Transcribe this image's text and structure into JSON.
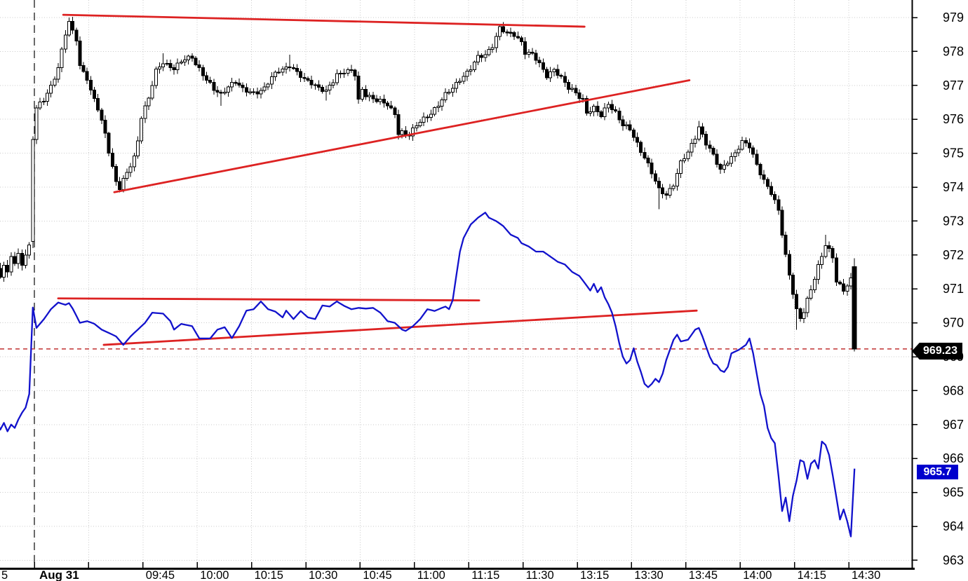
{
  "window": {
    "background": "#ffffff"
  },
  "axes": {
    "price_axis": {
      "side": "right",
      "labels": [
        "979",
        "978",
        "977",
        "976",
        "975",
        "974",
        "973",
        "972",
        "971",
        "970",
        "969",
        "968",
        "967",
        "966",
        "965",
        "964",
        "963"
      ],
      "min": 963,
      "max": 979,
      "step": 1
    },
    "time_axis": {
      "partial_left_label": "5",
      "session_date_label": "Aug 31",
      "labels": [
        {
          "text": "09:45",
          "minute": 30
        },
        {
          "text": "10:00",
          "minute": 45
        },
        {
          "text": "10:15",
          "minute": 60
        },
        {
          "text": "10:30",
          "minute": 75
        },
        {
          "text": "10:45",
          "minute": 90
        },
        {
          "text": "11:00",
          "minute": 105
        },
        {
          "text": "11:15",
          "minute": 120
        },
        {
          "text": "11:30",
          "minute": 135
        },
        {
          "text": "13:15",
          "minute": 150
        },
        {
          "text": "13:30",
          "minute": 165
        },
        {
          "text": "13:45",
          "minute": 180
        },
        {
          "text": "14:00",
          "minute": 195
        },
        {
          "text": "14:15",
          "minute": 210
        },
        {
          "text": "14:30",
          "minute": 225
        }
      ],
      "tick_minutes": [
        0,
        15,
        30,
        45,
        60,
        75,
        90,
        105,
        120,
        135,
        150,
        165,
        180,
        195,
        210,
        225
      ],
      "note": "lunch break 11:30-13:00 omitted between adjacent labels 11:30 and 13:15"
    }
  },
  "tags": {
    "candle_close": {
      "value": "969.23",
      "price": 969.23,
      "bg": "#000000",
      "fg": "#ffffff"
    },
    "line_close": {
      "value": "965.7",
      "price": 965.7,
      "bg": "#0000cd",
      "fg": "#ffffff"
    }
  },
  "chart_data": {
    "type": "candlestick+line",
    "interval_minutes": 1,
    "ylim": [
      963,
      979
    ],
    "grid": "dotted both axes, every price unit and every 15 minutes",
    "session": {
      "date_label": "Aug 31",
      "open": "09:15",
      "close_shown": "14:30",
      "break": [
        "11:30",
        "13:00"
      ]
    },
    "colors": {
      "up_body": "#ffffff",
      "down_body": "#000000",
      "outline": "#000000",
      "line_series": "#1212cc",
      "trendline": "#dd2222",
      "dashed_level": "#c03030",
      "grid": "#c9c9c9",
      "axis": "#000000",
      "session_separator": "#1a1a1a"
    },
    "candles": {
      "prev_day_closes": [
        971.6,
        971.35,
        971.7,
        971.5,
        971.95,
        971.75,
        972.05,
        971.7,
        972.0,
        972.3
      ],
      "gap_candle": {
        "open": 972.4,
        "close": 975.4,
        "high": 975.5,
        "low": 972.2
      },
      "close_anchors": [
        [
          0,
          976.3
        ],
        [
          2,
          976.6
        ],
        [
          4,
          977.0
        ],
        [
          6,
          977.5
        ],
        [
          8,
          978.5
        ],
        [
          9,
          978.85
        ],
        [
          10,
          978.6
        ],
        [
          11,
          978.4
        ],
        [
          12,
          977.6
        ],
        [
          14,
          977.2
        ],
        [
          15,
          976.8
        ],
        [
          17,
          976.3
        ],
        [
          19,
          975.6
        ],
        [
          21,
          974.6
        ],
        [
          22,
          974.15
        ],
        [
          23,
          973.95
        ],
        [
          25,
          974.4
        ],
        [
          27,
          974.9
        ],
        [
          28,
          975.4
        ],
        [
          29,
          976.1
        ],
        [
          31,
          976.6
        ],
        [
          33,
          977.4
        ],
        [
          35,
          977.7
        ],
        [
          38,
          977.5
        ],
        [
          41,
          977.75
        ],
        [
          43,
          977.85
        ],
        [
          45,
          977.5
        ],
        [
          47,
          977.15
        ],
        [
          49,
          976.85
        ],
        [
          51,
          976.75
        ],
        [
          53,
          977.0
        ],
        [
          55,
          977.1
        ],
        [
          57,
          976.85
        ],
        [
          60,
          976.8
        ],
        [
          63,
          976.9
        ],
        [
          65,
          977.2
        ],
        [
          67,
          977.45
        ],
        [
          70,
          977.6
        ],
        [
          72,
          977.35
        ],
        [
          74,
          977.15
        ],
        [
          76,
          977.1
        ],
        [
          78,
          976.95
        ],
        [
          80,
          976.8
        ],
        [
          82,
          977.1
        ],
        [
          83,
          977.3
        ],
        [
          85,
          977.45
        ],
        [
          87,
          977.45
        ],
        [
          88,
          977.3
        ],
        [
          89,
          976.5
        ],
        [
          90,
          976.85
        ],
        [
          91,
          976.7
        ],
        [
          93,
          976.65
        ],
        [
          95,
          976.55
        ],
        [
          97,
          976.4
        ],
        [
          98,
          976.25
        ],
        [
          99,
          976.15
        ],
        [
          100,
          975.6
        ],
        [
          101,
          975.65
        ],
        [
          102,
          975.6
        ],
        [
          103,
          975.55
        ],
        [
          105,
          975.8
        ],
        [
          107,
          976.0
        ],
        [
          109,
          976.2
        ],
        [
          111,
          976.45
        ],
        [
          113,
          976.7
        ],
        [
          115,
          976.9
        ],
        [
          117,
          977.2
        ],
        [
          119,
          977.4
        ],
        [
          120,
          977.5
        ],
        [
          122,
          977.8
        ],
        [
          124,
          977.9
        ],
        [
          126,
          978.2
        ],
        [
          128,
          978.7
        ],
        [
          130,
          978.5
        ],
        [
          132,
          978.5
        ],
        [
          134,
          978.3
        ],
        [
          135,
          978.0
        ],
        [
          137,
          977.9
        ],
        [
          139,
          977.6
        ],
        [
          141,
          977.3
        ],
        [
          143,
          977.5
        ],
        [
          145,
          977.2
        ],
        [
          147,
          976.9
        ],
        [
          149,
          976.8
        ],
        [
          151,
          976.6
        ],
        [
          152,
          976.2
        ],
        [
          154,
          976.3
        ],
        [
          156,
          976.1
        ],
        [
          158,
          976.5
        ],
        [
          160,
          976.2
        ],
        [
          162,
          975.8
        ],
        [
          164,
          975.7
        ],
        [
          166,
          975.3
        ],
        [
          168,
          974.9
        ],
        [
          170,
          974.4
        ],
        [
          172,
          973.9
        ],
        [
          174,
          973.8
        ],
        [
          176,
          974.1
        ],
        [
          178,
          974.7
        ],
        [
          180,
          975.0
        ],
        [
          182,
          975.5
        ],
        [
          183,
          975.8
        ],
        [
          185,
          975.3
        ],
        [
          187,
          974.9
        ],
        [
          189,
          974.5
        ],
        [
          191,
          974.8
        ],
        [
          193,
          975.0
        ],
        [
          195,
          975.3
        ],
        [
          197,
          975.2
        ],
        [
          199,
          974.7
        ],
        [
          201,
          974.2
        ],
        [
          203,
          973.8
        ],
        [
          205,
          973.3
        ],
        [
          207,
          972.0
        ],
        [
          209,
          970.9
        ],
        [
          210,
          970.35
        ],
        [
          211,
          970.1
        ],
        [
          212,
          970.3
        ],
        [
          214,
          971.0
        ],
        [
          216,
          971.7
        ],
        [
          218,
          972.3
        ],
        [
          220,
          971.9
        ],
        [
          221,
          971.2
        ],
        [
          223,
          971.0
        ],
        [
          225,
          971.3
        ],
        [
          226,
          969.23
        ]
      ],
      "wick_high_overrides": {
        "9": 979.0,
        "35": 977.95,
        "43": 977.95,
        "70": 977.9,
        "128": 978.78,
        "183": 975.95,
        "218": 972.6
      },
      "wick_low_overrides": {
        "23": 973.85,
        "51": 976.4,
        "80": 976.55,
        "102": 975.45,
        "172": 973.35,
        "210": 969.8
      },
      "last_candle": {
        "open": 971.65,
        "close": 969.23,
        "high": 971.9,
        "low": 969.15
      }
    },
    "line_series": {
      "name": "blue-line",
      "last_value": 965.7,
      "anchors": [
        [
          -11,
          967.1
        ],
        [
          -10,
          966.85
        ],
        [
          -9,
          967.05
        ],
        [
          -8,
          966.8
        ],
        [
          -7,
          967.0
        ],
        [
          -6,
          966.9
        ],
        [
          -5,
          967.15
        ],
        [
          -4,
          967.35
        ],
        [
          -3,
          967.5
        ],
        [
          -2,
          967.9
        ],
        [
          -1,
          970.45
        ],
        [
          0,
          969.85
        ],
        [
          2,
          970.1
        ],
        [
          4,
          970.4
        ],
        [
          6,
          970.6
        ],
        [
          8,
          970.53
        ],
        [
          9,
          970.58
        ],
        [
          10,
          970.42
        ],
        [
          12,
          970.0
        ],
        [
          14,
          970.05
        ],
        [
          16,
          969.97
        ],
        [
          18,
          969.8
        ],
        [
          20,
          969.7
        ],
        [
          22,
          969.6
        ],
        [
          24,
          969.35
        ],
        [
          26,
          969.6
        ],
        [
          28,
          969.8
        ],
        [
          30,
          970.0
        ],
        [
          32,
          970.3
        ],
        [
          35,
          970.27
        ],
        [
          37,
          970.05
        ],
        [
          38,
          969.8
        ],
        [
          40,
          969.97
        ],
        [
          43,
          969.9
        ],
        [
          45,
          969.54
        ],
        [
          48,
          969.54
        ],
        [
          50,
          969.8
        ],
        [
          52,
          969.87
        ],
        [
          54,
          969.55
        ],
        [
          56,
          969.9
        ],
        [
          58,
          970.36
        ],
        [
          60,
          970.4
        ],
        [
          62,
          970.63
        ],
        [
          64,
          970.4
        ],
        [
          66,
          970.33
        ],
        [
          68,
          970.16
        ],
        [
          69,
          970.36
        ],
        [
          71,
          970.11
        ],
        [
          73,
          970.35
        ],
        [
          75,
          970.16
        ],
        [
          77,
          970.11
        ],
        [
          79,
          970.51
        ],
        [
          81,
          970.48
        ],
        [
          83,
          970.63
        ],
        [
          85,
          970.5
        ],
        [
          87,
          970.4
        ],
        [
          89,
          970.44
        ],
        [
          91,
          970.42
        ],
        [
          93,
          970.44
        ],
        [
          95,
          970.3
        ],
        [
          97,
          970.05
        ],
        [
          99,
          970.0
        ],
        [
          101,
          969.8
        ],
        [
          102,
          969.76
        ],
        [
          104,
          969.9
        ],
        [
          106,
          970.11
        ],
        [
          108,
          970.4
        ],
        [
          110,
          970.35
        ],
        [
          112,
          970.44
        ],
        [
          113,
          970.48
        ],
        [
          114,
          970.4
        ],
        [
          115,
          970.67
        ],
        [
          116,
          971.4
        ],
        [
          117,
          972.1
        ],
        [
          118,
          972.5
        ],
        [
          120,
          972.9
        ],
        [
          122,
          973.1
        ],
        [
          124,
          973.25
        ],
        [
          125,
          973.1
        ],
        [
          127,
          973.0
        ],
        [
          129,
          972.85
        ],
        [
          131,
          972.6
        ],
        [
          133,
          972.5
        ],
        [
          134,
          972.35
        ],
        [
          136,
          972.25
        ],
        [
          138,
          972.1
        ],
        [
          140,
          972.1
        ],
        [
          142,
          971.95
        ],
        [
          144,
          971.8
        ],
        [
          146,
          971.72
        ],
        [
          148,
          971.5
        ],
        [
          150,
          971.38
        ],
        [
          152,
          971.1
        ],
        [
          153,
          970.95
        ],
        [
          154,
          971.15
        ],
        [
          155,
          970.9
        ],
        [
          156,
          971.05
        ],
        [
          157,
          970.75
        ],
        [
          158,
          970.55
        ],
        [
          159,
          970.3
        ],
        [
          160,
          969.9
        ],
        [
          161,
          969.4
        ],
        [
          162,
          969.0
        ],
        [
          163,
          968.8
        ],
        [
          164,
          968.9
        ],
        [
          165,
          969.25
        ],
        [
          166,
          968.85
        ],
        [
          167,
          968.55
        ],
        [
          168,
          968.2
        ],
        [
          169,
          968.1
        ],
        [
          170,
          968.2
        ],
        [
          171,
          968.35
        ],
        [
          172,
          968.25
        ],
        [
          173,
          968.5
        ],
        [
          174,
          968.9
        ],
        [
          175,
          969.2
        ],
        [
          176,
          969.5
        ],
        [
          177,
          969.65
        ],
        [
          178,
          969.45
        ],
        [
          180,
          969.5
        ],
        [
          182,
          969.8
        ],
        [
          183,
          969.85
        ],
        [
          184,
          969.6
        ],
        [
          185,
          969.3
        ],
        [
          186,
          969.0
        ],
        [
          187,
          968.8
        ],
        [
          188,
          968.75
        ],
        [
          189,
          968.6
        ],
        [
          190,
          968.55
        ],
        [
          191,
          968.7
        ],
        [
          192,
          969.1
        ],
        [
          194,
          969.2
        ],
        [
          196,
          969.35
        ],
        [
          197,
          969.54
        ],
        [
          198,
          969.1
        ],
        [
          199,
          968.5
        ],
        [
          200,
          967.9
        ],
        [
          201,
          967.55
        ],
        [
          202,
          966.9
        ],
        [
          203,
          966.6
        ],
        [
          204,
          966.45
        ],
        [
          205,
          965.5
        ],
        [
          206,
          964.45
        ],
        [
          207,
          964.85
        ],
        [
          208,
          964.15
        ],
        [
          209,
          964.9
        ],
        [
          210,
          965.35
        ],
        [
          211,
          965.95
        ],
        [
          212,
          965.9
        ],
        [
          213,
          965.4
        ],
        [
          214,
          965.85
        ],
        [
          215,
          965.95
        ],
        [
          216,
          965.7
        ],
        [
          217,
          966.5
        ],
        [
          218,
          966.4
        ],
        [
          219,
          966.1
        ],
        [
          220,
          965.5
        ],
        [
          221,
          964.85
        ],
        [
          222,
          964.2
        ],
        [
          223,
          964.5
        ],
        [
          224,
          964.15
        ],
        [
          225,
          963.7
        ],
        [
          226,
          965.7
        ]
      ]
    },
    "annotations": {
      "trendlines": [
        {
          "t1": 7.4,
          "p1": 979.08,
          "t2": 151.4,
          "p2": 978.73
        },
        {
          "t1": 21.5,
          "p1": 973.85,
          "t2": 180.4,
          "p2": 977.15
        },
        {
          "t1": 6.0,
          "p1": 970.72,
          "t2": 122.3,
          "p2": 970.66
        },
        {
          "t1": 18.6,
          "p1": 969.35,
          "t2": 182.4,
          "p2": 970.36
        }
      ],
      "dashed_hline_price": 969.23,
      "session_separator_minute": 0
    }
  }
}
